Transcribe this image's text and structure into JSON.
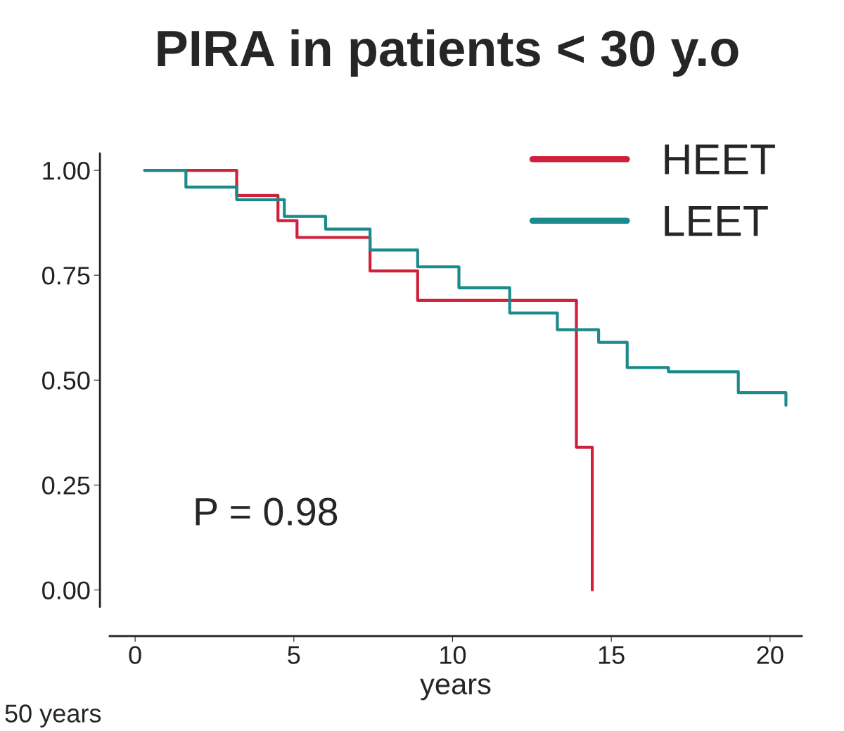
{
  "chart_data": {
    "type": "step",
    "title": "PIRA in patients < 30 y.o",
    "xlabel": "years",
    "xlim": [
      -0.8,
      21
    ],
    "xticks": [
      0,
      5,
      10,
      15,
      20
    ],
    "ylim": [
      -0.04,
      1.04
    ],
    "yticks": [
      {
        "value": 0,
        "label": "0.00"
      },
      {
        "value": 0.25,
        "label": "0.25"
      },
      {
        "value": 0.5,
        "label": "0.50"
      },
      {
        "value": 0.75,
        "label": "0.75"
      },
      {
        "value": 1,
        "label": "1.00"
      }
    ],
    "series": [
      {
        "name": "HEET",
        "color": "#d0203a",
        "x": [
          0.3,
          3.2,
          4.5,
          5.1,
          7.4,
          8.9,
          13.9,
          14.4
        ],
        "values": [
          1.0,
          0.94,
          0.88,
          0.84,
          0.76,
          0.69,
          0.34,
          0.0
        ]
      },
      {
        "name": "LEET",
        "color": "#1a8a8a",
        "x": [
          0.3,
          1.6,
          3.2,
          4.7,
          6.0,
          7.4,
          8.9,
          10.2,
          11.8,
          13.3,
          14.6,
          15.5,
          16.8,
          17.9,
          19.0,
          20.5
        ],
        "values": [
          1.0,
          0.96,
          0.93,
          0.89,
          0.86,
          0.81,
          0.77,
          0.72,
          0.66,
          0.62,
          0.59,
          0.53,
          0.52,
          0.52,
          0.47,
          0.44
        ]
      }
    ],
    "legend": "top right",
    "grid": false,
    "line_style": "solid",
    "annotations": [
      "P = 0.98",
      "50 years"
    ]
  }
}
